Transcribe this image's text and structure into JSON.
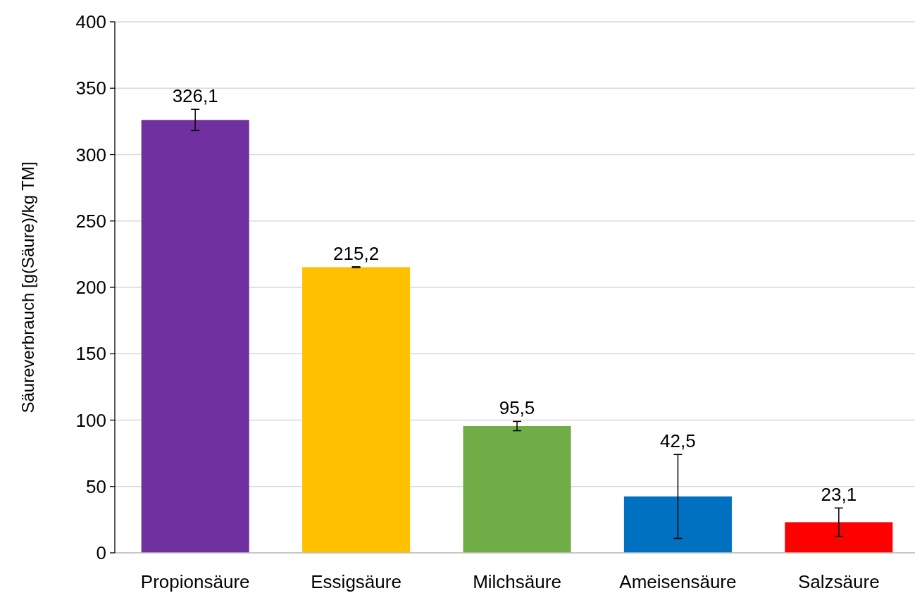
{
  "chart_data": {
    "type": "bar",
    "ylabel": "Säureverbrauch [g(Säure)/kg TM]",
    "categories": [
      "Propionsäure",
      "Essigsäure",
      "Milchsäure",
      "Ameisensäure",
      "Salzsäure"
    ],
    "values": [
      326.1,
      215.2,
      95.5,
      42.5,
      23.1
    ],
    "colors": [
      "#7030a0",
      "#ffc000",
      "#70ad47",
      "#0070c0",
      "#ff0000"
    ],
    "errors": [
      8,
      0.3,
      3.5,
      31.6,
      10.7
    ],
    "value_labels": [
      "326,1",
      "215,2",
      "95,5",
      "42,5",
      "23,1"
    ],
    "ylim": [
      0,
      400
    ],
    "yticks": [
      0,
      50,
      100,
      150,
      200,
      250,
      300,
      350,
      400
    ],
    "grid": "y"
  }
}
